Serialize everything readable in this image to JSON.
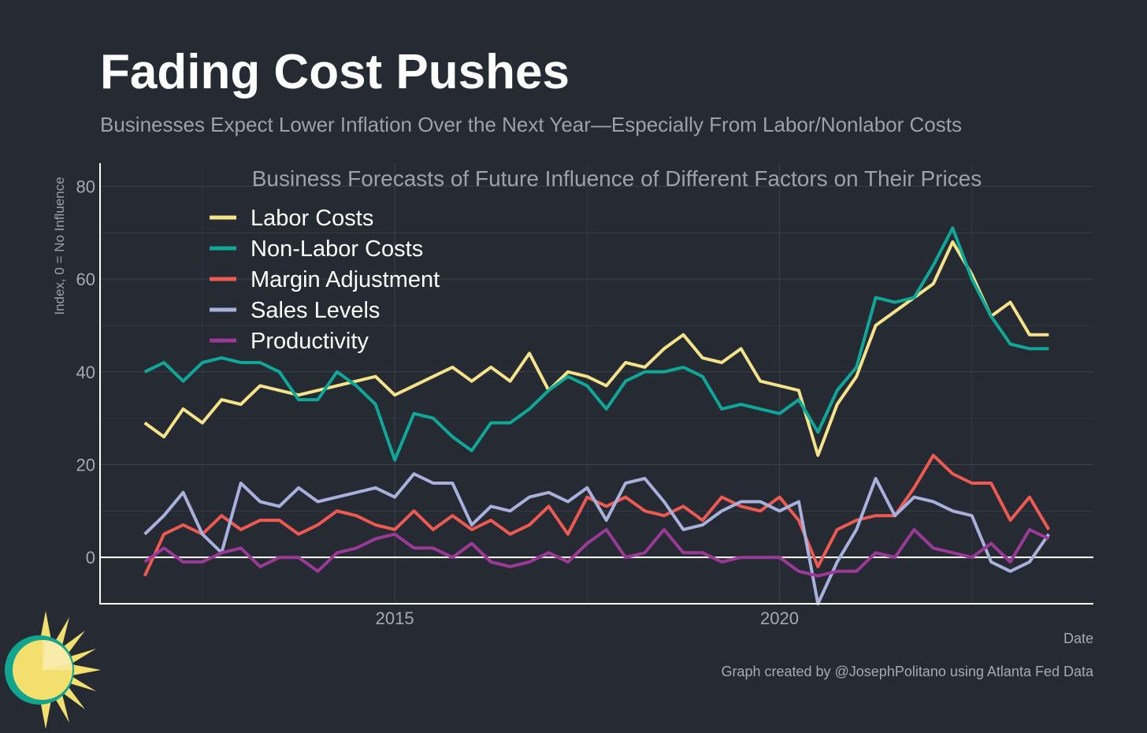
{
  "title": "Fading Cost Pushes",
  "subtitle": "Businesses Expect Lower Inflation Over the Next Year—Especially From Labor/Nonlabor Costs",
  "credit": "Graph created by @JosephPolitano using Atlanta Fed Data",
  "colors": {
    "background": "#252a33",
    "grid": "#3c414a",
    "axis": "#ffffff",
    "tick": "#a6aab0"
  },
  "chart_data": {
    "type": "line",
    "title": "Business Forecasts of Future Influence of Different Factors on Their Prices",
    "xlabel": "Date",
    "ylabel": "Index, 0 = No Influence",
    "xlim": [
      2011.17,
      2024.08
    ],
    "ylim": [
      -10,
      85
    ],
    "x_ticks": [
      {
        "value": 2015,
        "label": "2015"
      },
      {
        "value": 2020,
        "label": "2020"
      }
    ],
    "y_ticks": [
      {
        "value": 0,
        "label": "0"
      },
      {
        "value": 20,
        "label": "20"
      },
      {
        "value": 40,
        "label": "40"
      },
      {
        "value": 60,
        "label": "60"
      },
      {
        "value": 80,
        "label": "80"
      }
    ],
    "x_start": 2011.75,
    "x_step": 0.25,
    "legend_position": "top-left",
    "series": [
      {
        "name": "Labor Costs",
        "color": "#f5e38a",
        "values": [
          29,
          26,
          32,
          29,
          34,
          33,
          37,
          36,
          35,
          36,
          37,
          38,
          39,
          35,
          37,
          39,
          41,
          38,
          41,
          38,
          44,
          36,
          40,
          39,
          37,
          42,
          41,
          45,
          48,
          43,
          42,
          45,
          38,
          37,
          36,
          22,
          33,
          39,
          50,
          53,
          56,
          59,
          68,
          61,
          52,
          55,
          48,
          48
        ]
      },
      {
        "name": "Non-Labor Costs",
        "color": "#0fa898",
        "values": [
          40,
          42,
          38,
          42,
          43,
          42,
          42,
          40,
          34,
          34,
          40,
          37,
          33,
          21,
          31,
          30,
          26,
          23,
          29,
          29,
          32,
          36,
          39,
          37,
          32,
          38,
          40,
          40,
          41,
          39,
          32,
          33,
          32,
          31,
          34,
          27,
          36,
          41,
          56,
          55,
          56,
          63,
          71,
          60,
          52,
          46,
          45,
          45
        ]
      },
      {
        "name": "Margin Adjustment",
        "color": "#ee5a52",
        "values": [
          -4,
          5,
          7,
          5,
          9,
          6,
          8,
          8,
          5,
          7,
          10,
          9,
          7,
          6,
          10,
          6,
          9,
          6,
          8,
          5,
          7,
          11,
          5,
          13,
          11,
          13,
          10,
          9,
          11,
          8,
          13,
          11,
          10,
          13,
          8,
          -2,
          6,
          8,
          9,
          9,
          15,
          22,
          18,
          16,
          16,
          8,
          13,
          6
        ]
      },
      {
        "name": "Sales Levels",
        "color": "#a8b0dc",
        "values": [
          5,
          9,
          14,
          5,
          1,
          16,
          12,
          11,
          15,
          12,
          13,
          14,
          15,
          13,
          18,
          16,
          16,
          7,
          11,
          10,
          13,
          14,
          12,
          15,
          8,
          16,
          17,
          12,
          6,
          7,
          10,
          12,
          12,
          10,
          12,
          -10,
          -1,
          6,
          17,
          9,
          13,
          12,
          10,
          9,
          -1,
          -3,
          -1,
          5
        ]
      },
      {
        "name": "Productivity",
        "color": "#9b3a96",
        "values": [
          -1,
          2,
          -1,
          -1,
          1,
          2,
          -2,
          0,
          0,
          -3,
          1,
          2,
          4,
          5,
          2,
          2,
          0,
          3,
          -1,
          -2,
          -1,
          1,
          -1,
          3,
          6,
          0,
          1,
          6,
          1,
          1,
          -1,
          0,
          0,
          0,
          -3,
          -4,
          -3,
          -3,
          1,
          0,
          6,
          2,
          1,
          0,
          3,
          -1,
          6,
          4
        ]
      }
    ]
  }
}
